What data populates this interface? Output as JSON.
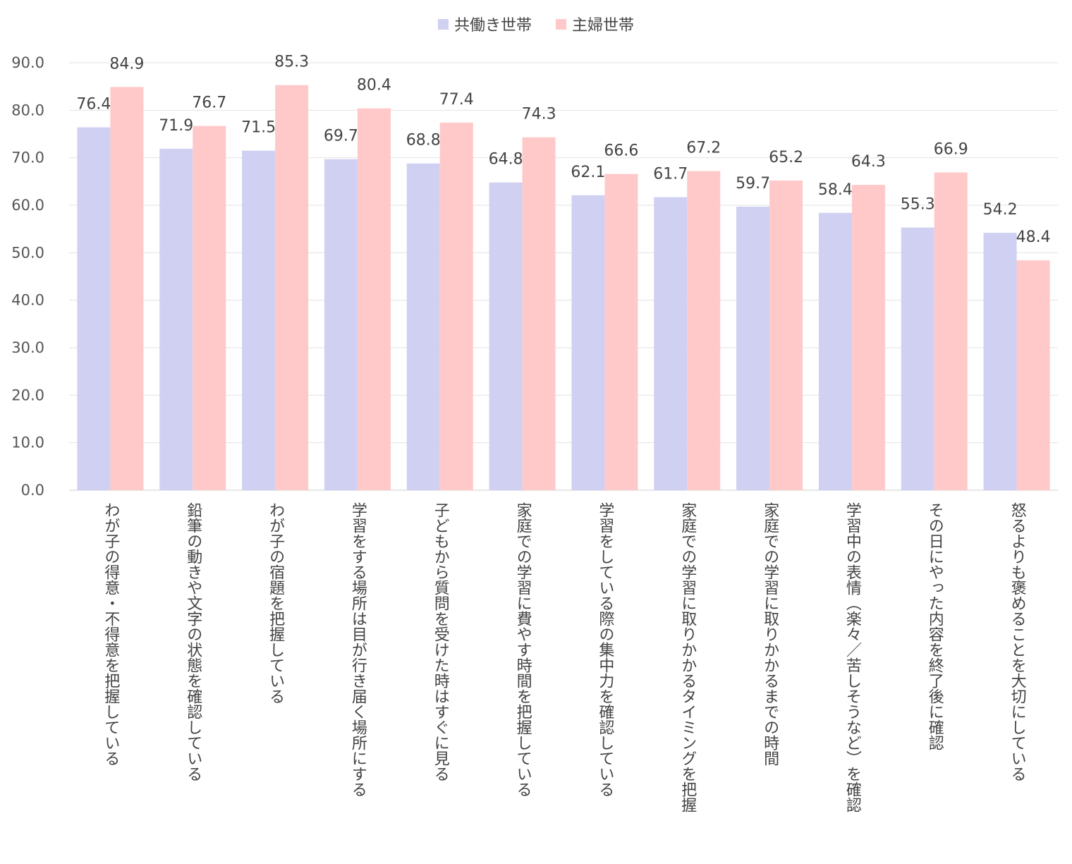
{
  "chart_data": {
    "type": "bar",
    "title": "",
    "xlabel": "",
    "ylabel": "",
    "ylim": [
      0,
      90
    ],
    "yticks": [
      "0.0",
      "10.0",
      "20.0",
      "30.0",
      "40.0",
      "50.0",
      "60.0",
      "70.0",
      "80.0",
      "90.0"
    ],
    "grid": true,
    "legend_position": "top-center",
    "categories": [
      "わが子の得意・不得意を把握している",
      "鉛筆の動きや文字の状態を確認している",
      "わが子の宿題を把握している",
      "学習をする場所は目が行き届く場所にする",
      "子どもから質問を受けた時はすぐに見る",
      "家庭での学習に費やす時間を把握している",
      "学習をしている際の集中力を確認している",
      "家庭での学習に取りかかるタイミングを把握",
      "家庭での学習に取りかかるまでの時間",
      "学習中の表情（楽々／苦しそうなど）を確認",
      "その日にやった内容を終了後に確認",
      "怒るよりも褒めることを大切にしている"
    ],
    "series": [
      {
        "name": "共働き世帯",
        "color": "#d0d0f2",
        "values": [
          76.4,
          71.9,
          71.5,
          69.7,
          68.8,
          64.8,
          62.1,
          61.7,
          59.7,
          58.4,
          55.3,
          54.2
        ],
        "labels": [
          "76.4",
          "71.9",
          "71.5",
          "69.7",
          "68.8",
          "64.8",
          "62.1",
          "61.7",
          "59.7",
          "58.4",
          "55.3",
          "54.2"
        ]
      },
      {
        "name": "主婦世帯",
        "color": "#ffc9c9",
        "values": [
          84.9,
          76.7,
          85.3,
          80.4,
          77.4,
          74.3,
          66.6,
          67.2,
          65.2,
          64.3,
          66.9,
          48.4
        ],
        "labels": [
          "84.9",
          "76.7",
          "85.3",
          "80.4",
          "77.4",
          "74.3",
          "66.6",
          "67.2",
          "65.2",
          "64.3",
          "66.9",
          "48.4"
        ]
      }
    ]
  }
}
